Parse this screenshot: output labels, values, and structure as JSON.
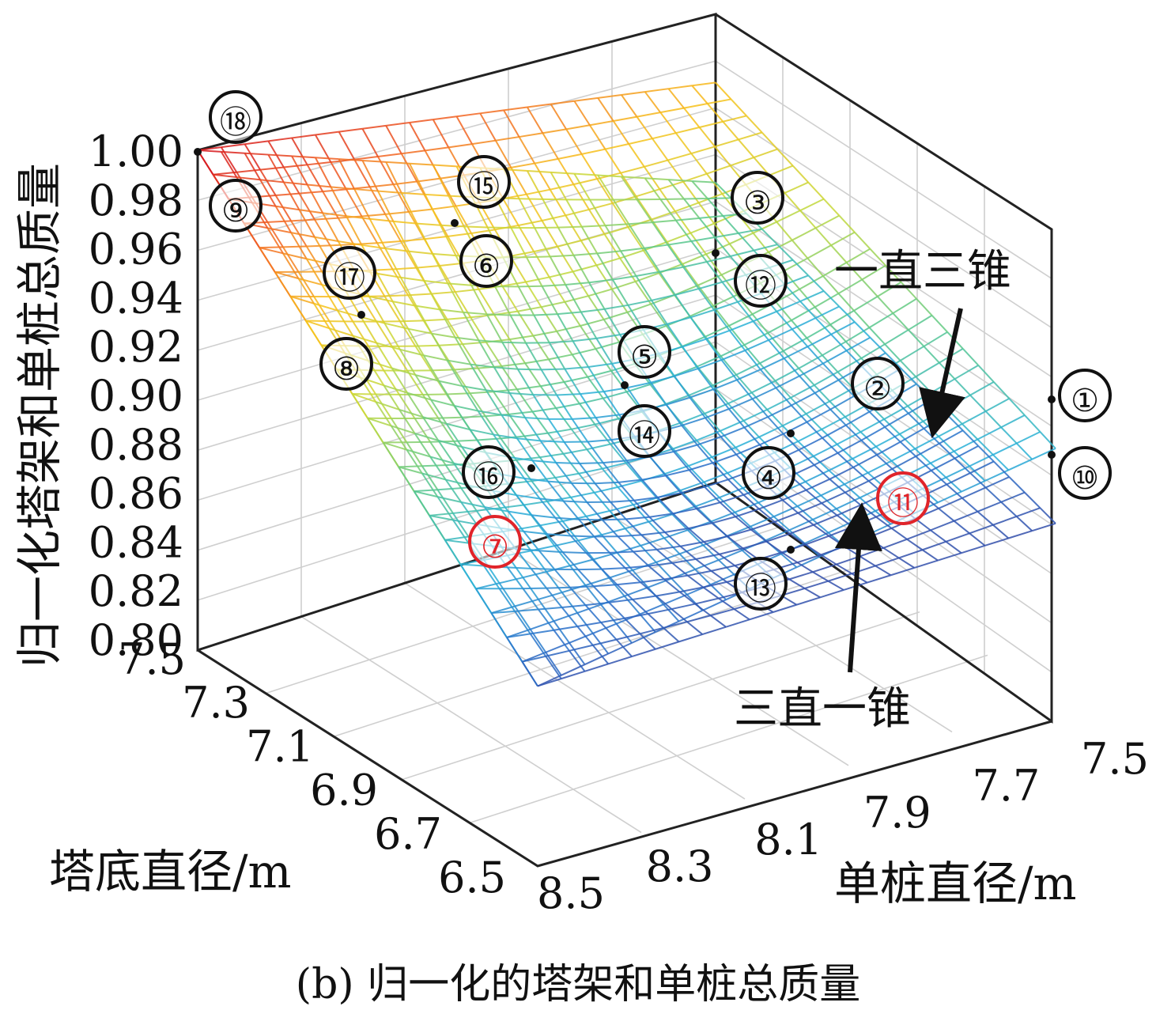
{
  "chart_data": {
    "type": "surface",
    "title": "",
    "caption": "(b) 归一化的塔架和单桩总质量",
    "zlabel": "归一化塔架和单桩总质量",
    "xlabel": "塔底直径/m",
    "ylabel": "单桩直径/m",
    "zlim": [
      0.8,
      1.0
    ],
    "z_ticks": [
      "1.00",
      "0.98",
      "0.96",
      "0.94",
      "0.92",
      "0.90",
      "0.88",
      "0.86",
      "0.84",
      "0.82",
      "0.80"
    ],
    "x_ticks": [
      "7.5",
      "7.3",
      "7.1",
      "6.9",
      "6.7",
      "6.5"
    ],
    "y_ticks": [
      "8.5",
      "8.3",
      "8.1",
      "7.9",
      "7.7",
      "7.5"
    ],
    "grid": true,
    "colormap": [
      "#3b2e8a",
      "#2a6fc9",
      "#29b0d8",
      "#5ac88a",
      "#c6d93a",
      "#f7c11a",
      "#f26522",
      "#d7191c"
    ],
    "annotation_color_red": "#e0242a",
    "surfaces": [
      {
        "name": "一直三锥",
        "label": "一直三锥",
        "corner_values": {
          "tower_7.5_pile_8.5": 1.0,
          "tower_6.5_pile_8.5": 0.872,
          "tower_7.5_pile_7.5": 0.96,
          "tower_6.5_pile_7.5": 0.9
        }
      },
      {
        "name": "三直一锥",
        "label": "三直一锥",
        "corner_values": {
          "tower_7.5_pile_8.5": 1.0,
          "tower_6.5_pile_8.5": 0.872,
          "tower_7.5_pile_7.5": 0.92,
          "tower_6.5_pile_7.5": 0.87
        }
      }
    ],
    "markers": [
      {
        "label": "⑱",
        "color": "black"
      },
      {
        "label": "⑨",
        "color": "black"
      },
      {
        "label": "⑮",
        "color": "black"
      },
      {
        "label": "⑥",
        "color": "black"
      },
      {
        "label": "⑰",
        "color": "black"
      },
      {
        "label": "⑧",
        "color": "black"
      },
      {
        "label": "③",
        "color": "black"
      },
      {
        "label": "⑫",
        "color": "black"
      },
      {
        "label": "⑤",
        "color": "black"
      },
      {
        "label": "⑭",
        "color": "black"
      },
      {
        "label": "②",
        "color": "black"
      },
      {
        "label": "①",
        "color": "black"
      },
      {
        "label": "⑩",
        "color": "black"
      },
      {
        "label": "④",
        "color": "black"
      },
      {
        "label": "⑪",
        "color": "red"
      },
      {
        "label": "⑯",
        "color": "black"
      },
      {
        "label": "⑦",
        "color": "red"
      },
      {
        "label": "⑬",
        "color": "black"
      }
    ]
  }
}
